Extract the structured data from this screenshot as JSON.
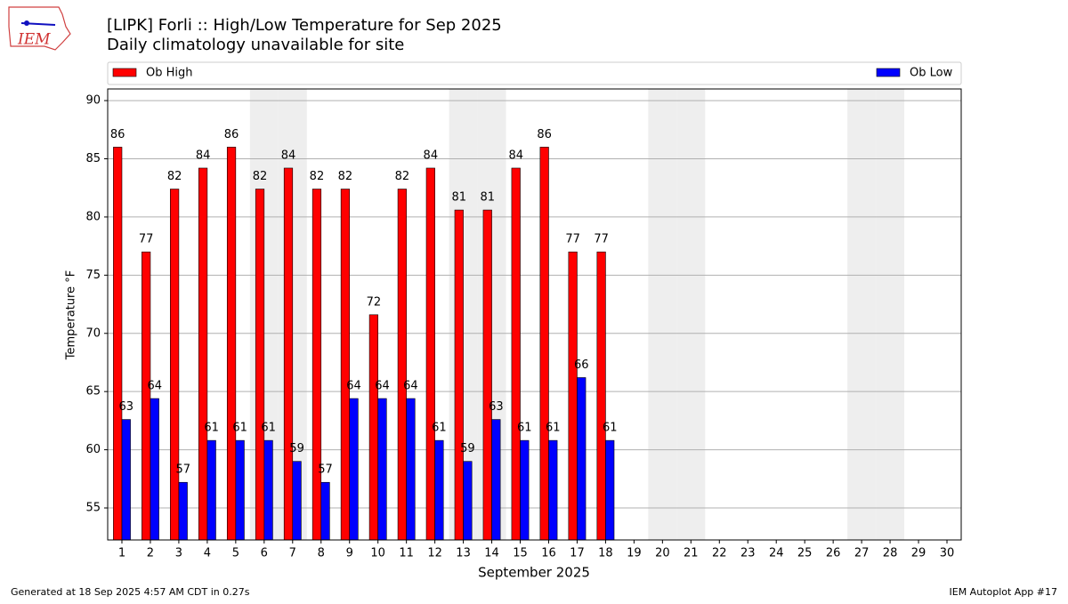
{
  "chart_data": {
    "type": "bar",
    "logo_text": "IEM",
    "title": "[LIPK] Forli :: High/Low Temperature for Sep 2025",
    "subtitle": "Daily climatology unavailable for site",
    "ylabel": "Temperature °F",
    "xlabel": "September 2025",
    "footer_left": "Generated at 18 Sep 2025 4:57 AM CDT in 0.27s",
    "footer_right": "IEM Autoplot App #17",
    "categories": [
      "1",
      "2",
      "3",
      "4",
      "5",
      "6",
      "7",
      "8",
      "9",
      "10",
      "11",
      "12",
      "13",
      "14",
      "15",
      "16",
      "17",
      "18",
      "19",
      "20",
      "21",
      "22",
      "23",
      "24",
      "25",
      "26",
      "27",
      "28",
      "29",
      "30"
    ],
    "shaded_days": [
      6,
      7,
      13,
      14,
      20,
      21,
      27,
      28
    ],
    "shade_color": "#eeeeee",
    "series": [
      {
        "name": "Ob High",
        "color": "#ff0000",
        "values": [
          86,
          77,
          82.4,
          84.2,
          86,
          82.4,
          84.2,
          82.4,
          82.4,
          71.6,
          82.4,
          84.2,
          80.6,
          80.6,
          84.2,
          86,
          77,
          77,
          null,
          null,
          null,
          null,
          null,
          null,
          null,
          null,
          null,
          null,
          null,
          null
        ],
        "value_labels": [
          "86",
          "77",
          "82",
          "84",
          "86",
          "82",
          "84",
          "82",
          "82",
          "72",
          "82",
          "84",
          "81",
          "81",
          "84",
          "86",
          "77",
          "77",
          null,
          null,
          null,
          null,
          null,
          null,
          null,
          null,
          null,
          null,
          null,
          null
        ]
      },
      {
        "name": "Ob Low",
        "color": "#0000ff",
        "values": [
          62.6,
          64.4,
          57.2,
          60.8,
          60.8,
          60.8,
          59,
          57.2,
          64.4,
          64.4,
          64.4,
          60.8,
          59,
          62.6,
          60.8,
          60.8,
          66.2,
          60.8,
          null,
          null,
          null,
          null,
          null,
          null,
          null,
          null,
          null,
          null,
          null,
          null
        ],
        "value_labels": [
          "63",
          "64",
          "57",
          "61",
          "61",
          "61",
          "59",
          "57",
          "64",
          "64",
          "64",
          "61",
          "59",
          "63",
          "61",
          "61",
          "66",
          "61",
          null,
          null,
          null,
          null,
          null,
          null,
          null,
          null,
          null,
          null,
          null,
          null
        ]
      }
    ],
    "ylim": [
      52.25,
      91
    ],
    "yticks": [
      55,
      60,
      65,
      70,
      75,
      80,
      85,
      90
    ],
    "grid": true
  }
}
